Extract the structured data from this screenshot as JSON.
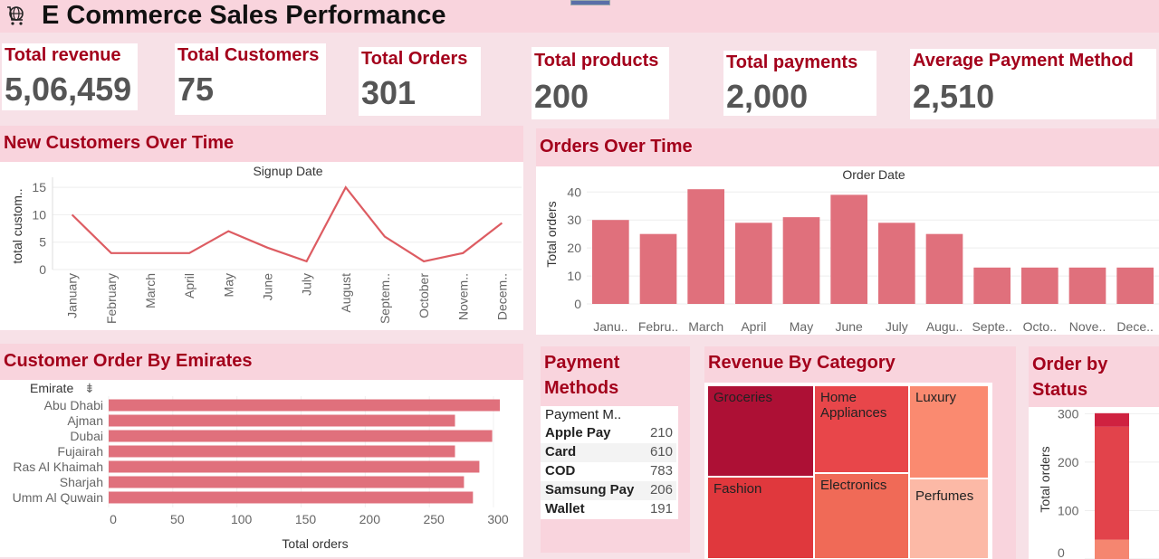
{
  "title": "E Commerce Sales Performance",
  "kpis": [
    {
      "label": "Total revenue",
      "value": "5,06,459"
    },
    {
      "label": "Total Customers",
      "value": "75"
    },
    {
      "label": "Total Orders",
      "value": "301"
    },
    {
      "label": "Total products",
      "value": "200"
    },
    {
      "label": "Total payments",
      "value": "2,000"
    },
    {
      "label": "Average Payment Method",
      "value": "2,510"
    }
  ],
  "panels": {
    "new_customers": "New Customers Over Time",
    "orders_time": "Orders Over Time",
    "emirates": "Customer Order By Emirates",
    "payment_line1": "Payment",
    "payment_line2": "Methods",
    "revenue_category": "Revenue By Category",
    "status_line1": "Order by",
    "status_line2": "Status"
  },
  "colors": {
    "accent": "#a3001b",
    "bar": "#e0707c",
    "line": "#dd5c62"
  },
  "chart_data": [
    {
      "type": "line",
      "title": "Signup Date",
      "ylabel": "total custom..",
      "categories": [
        "January",
        "February",
        "March",
        "April",
        "May",
        "June",
        "July",
        "August",
        "Septem..",
        "October",
        "Novem..",
        "Decem.."
      ],
      "values": [
        10,
        3,
        3,
        3,
        7,
        4,
        1.5,
        15,
        6,
        1.5,
        3,
        8.5
      ],
      "yticks": [
        0,
        5,
        10,
        15
      ],
      "ylim": [
        0,
        16
      ]
    },
    {
      "type": "bar",
      "title": "Order Date",
      "ylabel": "Total orders",
      "categories": [
        "Janu..",
        "Febru..",
        "March",
        "April",
        "May",
        "June",
        "July",
        "Augu..",
        "Septe..",
        "Octo..",
        "Nove..",
        "Dece.."
      ],
      "values": [
        30,
        25,
        41,
        29,
        31,
        39,
        29,
        25,
        13,
        13,
        13,
        13
      ],
      "yticks": [
        0,
        10,
        20,
        30,
        40
      ],
      "ylim": [
        0,
        43
      ]
    },
    {
      "type": "bar",
      "orientation": "horizontal",
      "ycaption": "Emirate",
      "xlabel": "Total orders",
      "categories": [
        "Abu Dhabi",
        "Ajman",
        "Dubai",
        "Fujairah",
        "Ras Al Khaimah",
        "Sharjah",
        "Umm Al Quwain"
      ],
      "values": [
        305,
        270,
        299,
        270,
        289,
        277,
        284
      ],
      "xticks": [
        0,
        50,
        100,
        150,
        200,
        250,
        300
      ],
      "xlim": [
        0,
        300
      ]
    },
    {
      "type": "table",
      "header": "Payment M..",
      "rows": [
        {
          "name": "Apple Pay",
          "value": "210"
        },
        {
          "name": "Card",
          "value": "610"
        },
        {
          "name": "COD",
          "value": "783"
        },
        {
          "name": "Samsung Pay",
          "value": "206"
        },
        {
          "name": "Wallet",
          "value": "191"
        }
      ]
    },
    {
      "type": "treemap",
      "items": [
        {
          "name": "Groceries",
          "color": "#ad1035"
        },
        {
          "name": "Fashion",
          "color": "#e0383d"
        },
        {
          "name": "Home Appliances",
          "color": "#e8464a"
        },
        {
          "name": "Electronics",
          "color": "#f06a57"
        },
        {
          "name": "Luxury",
          "color": "#fa8a70"
        },
        {
          "name": "Perfumes",
          "color": "#fcb9a6"
        }
      ]
    },
    {
      "type": "bar",
      "stacked": true,
      "ylabel": "Total orders",
      "yticks": [
        0,
        100,
        200,
        300
      ],
      "ylim": [
        0,
        310
      ],
      "segments": [
        {
          "value": 40,
          "color": "#f58670"
        },
        {
          "value": 233,
          "color": "#e2434b"
        },
        {
          "value": 28,
          "color": "#cf2240"
        }
      ]
    }
  ]
}
